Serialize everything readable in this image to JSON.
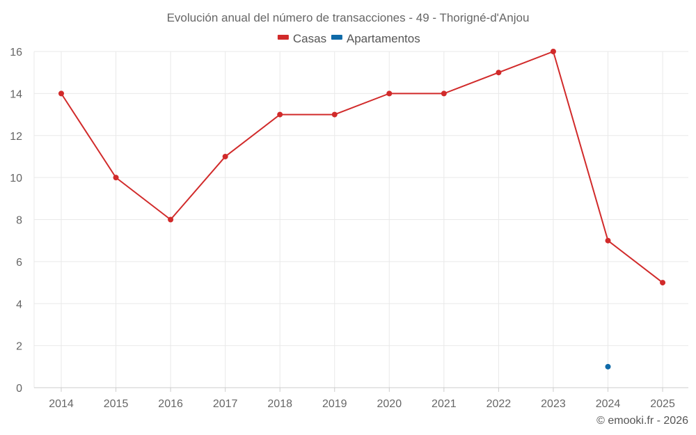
{
  "chart_data": {
    "type": "line",
    "title": "Evolución anual del número de transacciones - 49 - Thorigné-d'Anjou",
    "xlabel": "",
    "ylabel": "",
    "categories": [
      "2014",
      "2015",
      "2016",
      "2017",
      "2018",
      "2019",
      "2020",
      "2021",
      "2022",
      "2023",
      "2024",
      "2025"
    ],
    "ylim": [
      0,
      16
    ],
    "yticks": [
      0,
      2,
      4,
      6,
      8,
      10,
      12,
      14,
      16
    ],
    "grid": true,
    "legend_position": "top-center",
    "series": [
      {
        "name": "Casas",
        "color": "#d12a2a",
        "values": [
          14,
          10,
          8,
          11,
          13,
          13,
          14,
          14,
          15,
          16,
          7,
          5
        ]
      },
      {
        "name": "Apartamentos",
        "color": "#0f6aa8",
        "values": [
          null,
          null,
          null,
          null,
          null,
          null,
          null,
          null,
          null,
          null,
          1,
          null
        ]
      }
    ]
  },
  "credit": "© emooki.fr - 2026"
}
